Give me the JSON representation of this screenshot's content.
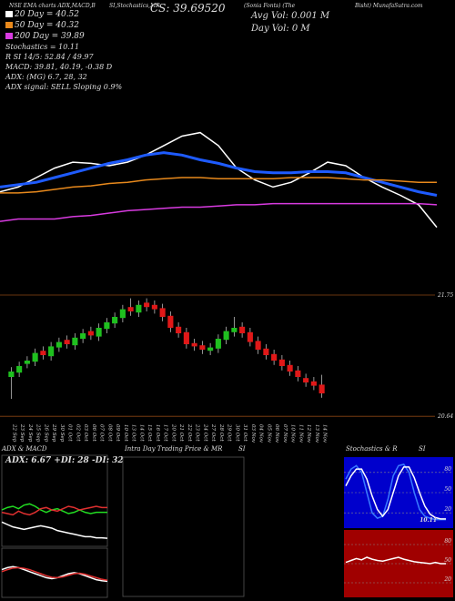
{
  "chart_data": [
    {
      "type": "line",
      "ylim": [
        0,
        100
      ],
      "annotations": [
        "NSE EMA charts ADX,MACD,B",
        "SI,Stochastics,MR",
        "CS: 39.69520",
        "(Sonia Fonts) (The",
        "Avg Vol: 0.001 M",
        "Bisht) MunafaSutra.com",
        "Day Vol: 0  M",
        "20 Day = 40.52",
        "50 Day = 40.32",
        "200 Day = 39.89",
        "Stochastics = 10.11",
        "R       SI 14/5: 52.84 / 49.97",
        "MACD: 39.81, 40.19, -0.38  D",
        "ADX:          (MG) 6.7, 28, 32",
        "ADX  signal: SELL Sloping 0.9%"
      ],
      "series": [
        {
          "color": "#ffffff",
          "values": [
            38,
            42,
            50,
            58,
            63,
            62,
            60,
            63,
            69,
            77,
            85,
            88,
            77,
            58,
            48,
            42,
            46,
            54,
            63,
            60,
            50,
            42,
            35,
            27,
            8
          ]
        },
        {
          "color": "#1e5bff",
          "values": [
            42,
            44,
            46,
            50,
            54,
            58,
            62,
            65,
            69,
            71,
            69,
            65,
            62,
            58,
            55,
            54,
            54,
            55,
            55,
            54,
            50,
            46,
            42,
            38,
            35
          ]
        },
        {
          "color": "#e8891c",
          "values": [
            37,
            37,
            38,
            40,
            42,
            43,
            45,
            46,
            48,
            49,
            50,
            50,
            49,
            49,
            49,
            49,
            50,
            50,
            50,
            49,
            48,
            48,
            47,
            46,
            46
          ]
        },
        {
          "color": "#d83be0",
          "values": [
            13,
            15,
            15,
            15,
            17,
            18,
            20,
            22,
            23,
            24,
            25,
            25,
            26,
            27,
            27,
            28,
            28,
            28,
            28,
            28,
            28,
            28,
            28,
            28,
            27
          ]
        }
      ]
    },
    {
      "type": "candlestick",
      "ylim": [
        20.45,
        21.95
      ],
      "yticks": [
        21.75,
        20.64
      ],
      "up_color": "#1fc01f",
      "down_color": "#e01818",
      "grid_color": "#8b4513",
      "categories": [
        "22 Sep",
        "23 Sep",
        "24 Sep",
        "25 Sep",
        "26 Sep",
        "29 Sep",
        "30 Sep",
        "01 Oct",
        "02 Oct",
        "03 Oct",
        "06 Oct",
        "07 Oct",
        "08 Oct",
        "09 Oct",
        "10 Oct",
        "13 Oct",
        "14 Oct",
        "15 Oct",
        "16 Oct",
        "17 Oct",
        "20 Oct",
        "21 Oct",
        "22 Oct",
        "23 Oct",
        "24 Oct",
        "27 Oct",
        "28 Oct",
        "29 Oct",
        "30 Oct",
        "31 Oct",
        "03 Nov",
        "04 Nov",
        "05 Nov",
        "06 Nov",
        "07 Nov",
        "10 Nov",
        "11 Nov",
        "12 Nov",
        "13 Nov",
        "14 Nov"
      ],
      "open": [
        21.0,
        21.04,
        21.12,
        21.14,
        21.24,
        21.19,
        21.27,
        21.34,
        21.29,
        21.35,
        21.42,
        21.37,
        21.44,
        21.49,
        21.54,
        21.64,
        21.59,
        21.68,
        21.66,
        21.63,
        21.56,
        21.46,
        21.41,
        21.31,
        21.29,
        21.24,
        21.26,
        21.34,
        21.41,
        21.46,
        21.41,
        21.33,
        21.26,
        21.21,
        21.16,
        21.11,
        21.06,
        20.99,
        20.96,
        20.93
      ],
      "high": [
        21.09,
        21.14,
        21.19,
        21.26,
        21.28,
        21.32,
        21.36,
        21.38,
        21.4,
        21.44,
        21.46,
        21.49,
        21.54,
        21.59,
        21.66,
        21.72,
        21.7,
        21.72,
        21.7,
        21.67,
        21.6,
        21.5,
        21.45,
        21.35,
        21.33,
        21.31,
        21.39,
        21.46,
        21.55,
        21.5,
        21.45,
        21.37,
        21.3,
        21.25,
        21.2,
        21.15,
        21.1,
        21.03,
        21.0,
        21.02
      ],
      "low": [
        20.8,
        21.0,
        21.08,
        21.1,
        21.16,
        21.15,
        21.23,
        21.26,
        21.25,
        21.31,
        21.34,
        21.33,
        21.4,
        21.45,
        21.5,
        21.56,
        21.55,
        21.6,
        21.58,
        21.51,
        21.41,
        21.36,
        21.26,
        21.24,
        21.21,
        21.2,
        21.22,
        21.3,
        21.37,
        21.36,
        21.28,
        21.21,
        21.16,
        21.11,
        21.06,
        21.01,
        20.96,
        20.91,
        20.88,
        20.81
      ],
      "close": [
        21.05,
        21.1,
        21.15,
        21.22,
        21.2,
        21.28,
        21.32,
        21.3,
        21.36,
        21.4,
        21.38,
        21.45,
        21.5,
        21.55,
        21.62,
        21.6,
        21.66,
        21.64,
        21.62,
        21.55,
        21.45,
        21.4,
        21.3,
        21.28,
        21.25,
        21.27,
        21.35,
        21.42,
        21.45,
        21.4,
        21.32,
        21.25,
        21.2,
        21.15,
        21.1,
        21.05,
        21.0,
        20.95,
        20.92,
        20.85
      ]
    },
    {
      "type": "line",
      "title": "ADX  & MACD",
      "annotation": "ADX: 6.67 +DI: 28 -DI: 32",
      "ylim": [
        0,
        60
      ],
      "series": [
        {
          "color": "#22dd22",
          "values": [
            30,
            32,
            33,
            31,
            34,
            35,
            33,
            30,
            28,
            30,
            31,
            29,
            27,
            28,
            30,
            28,
            27,
            28,
            28,
            28
          ]
        },
        {
          "color": "#e03030",
          "values": [
            28,
            27,
            26,
            29,
            27,
            26,
            28,
            31,
            32,
            30,
            29,
            31,
            33,
            32,
            30,
            31,
            32,
            33,
            32,
            32
          ]
        },
        {
          "color": "#ffffff",
          "values": [
            20,
            18,
            16,
            15,
            14,
            15,
            16,
            17,
            16,
            15,
            13,
            12,
            11,
            10,
            9,
            8,
            8,
            7,
            7,
            6.7
          ]
        }
      ]
    },
    {
      "type": "line",
      "ylim": [
        -1,
        1
      ],
      "series": [
        {
          "color": "#ffffff",
          "values": [
            0.2,
            0.3,
            0.35,
            0.3,
            0.2,
            0.1,
            0,
            -0.1,
            -0.2,
            -0.25,
            -0.2,
            -0.1,
            0,
            0.05,
            0,
            -0.1,
            -0.2,
            -0.3,
            -0.35,
            -0.38
          ]
        },
        {
          "color": "#e03030",
          "values": [
            0.1,
            0.2,
            0.28,
            0.3,
            0.27,
            0.2,
            0.1,
            0,
            -0.1,
            -0.18,
            -0.2,
            -0.16,
            -0.08,
            0,
            0.02,
            -0.03,
            -0.12,
            -0.2,
            -0.28,
            -0.33
          ]
        }
      ]
    },
    {
      "type": "panel",
      "title": "Intra Day Trading Price  & MR",
      "subtitle": "SI"
    },
    {
      "type": "line",
      "title": "Stochastics & R",
      "annotation": "10.11",
      "ylim": [
        0,
        100
      ],
      "yticks": [
        80,
        50,
        20
      ],
      "background": "#0000cc",
      "series": [
        {
          "color": "#3a7bff",
          "values": [
            70,
            85,
            90,
            80,
            50,
            20,
            12,
            15,
            40,
            75,
            90,
            92,
            80,
            50,
            25,
            15,
            12,
            10,
            10,
            10
          ]
        },
        {
          "color": "#ffffff",
          "values": [
            60,
            75,
            85,
            85,
            70,
            45,
            25,
            15,
            25,
            50,
            75,
            88,
            88,
            72,
            50,
            30,
            18,
            13,
            11,
            11
          ]
        }
      ]
    },
    {
      "type": "line",
      "title": "SI",
      "ylim": [
        0,
        100
      ],
      "yticks": [
        80,
        50,
        20
      ],
      "background": "#a00000",
      "series": [
        {
          "color": "#ffffff",
          "values": [
            52,
            55,
            58,
            56,
            60,
            57,
            55,
            54,
            56,
            58,
            60,
            57,
            55,
            53,
            52,
            51,
            50,
            52,
            50,
            50
          ]
        }
      ]
    }
  ]
}
